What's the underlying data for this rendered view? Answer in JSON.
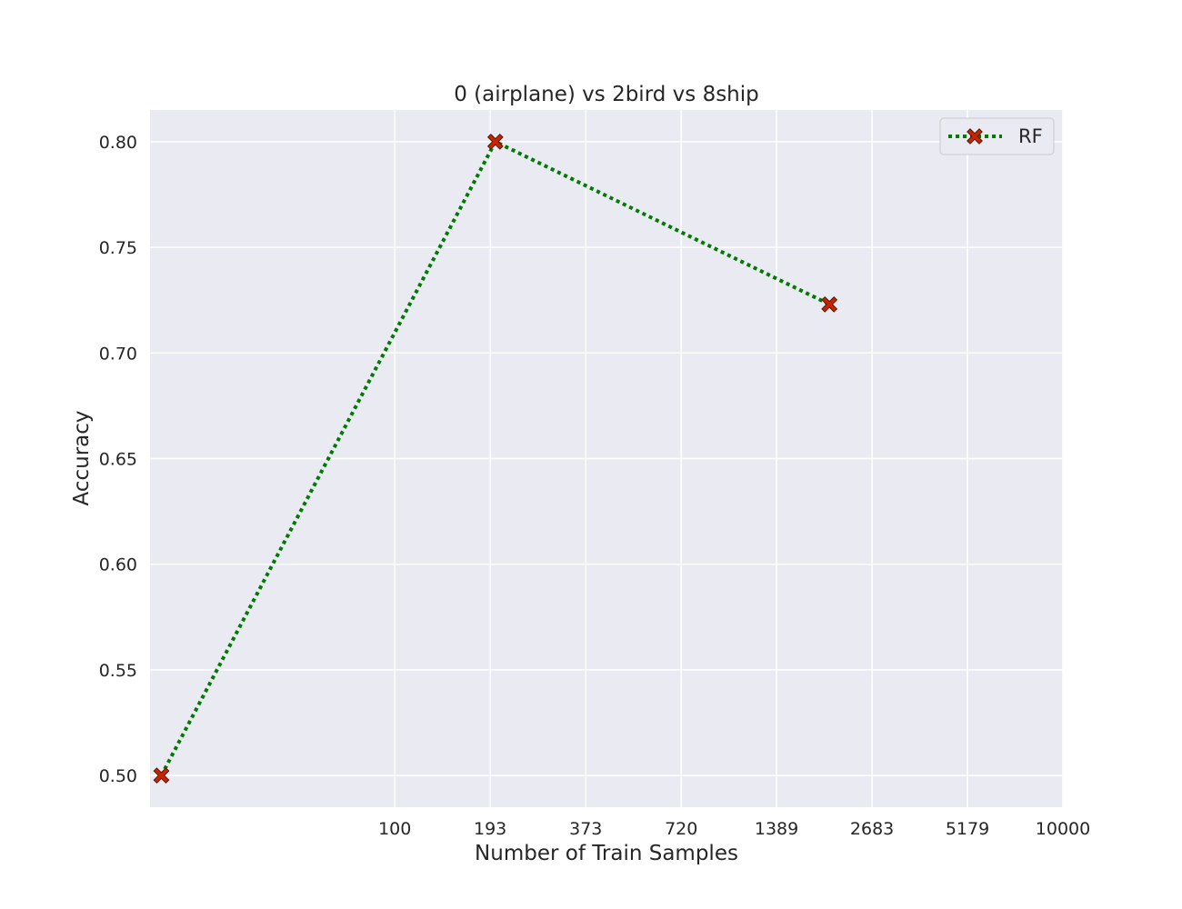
{
  "chart_data": {
    "type": "line",
    "title": "0 (airplane)  vs 2bird vs 8ship",
    "xlabel": "Number of Train Samples",
    "ylabel": "Accuracy",
    "x_scale": "log",
    "x_ticks": [
      100,
      193,
      373,
      720,
      1389,
      2683,
      5179,
      10000
    ],
    "x_tick_labels": [
      "100",
      "193",
      "373",
      "720",
      "1389",
      "2683",
      "5179",
      "10000"
    ],
    "xlim": [
      18.5,
      10000
    ],
    "y_ticks": [
      0.5,
      0.55,
      0.6,
      0.65,
      0.7,
      0.75,
      0.8
    ],
    "y_tick_labels": [
      "0.50",
      "0.55",
      "0.60",
      "0.65",
      "0.70",
      "0.75",
      "0.80"
    ],
    "ylim": [
      0.485,
      0.815
    ],
    "grid": true,
    "legend_position": "top-right",
    "series": [
      {
        "name": "RF",
        "x": [
          20,
          200,
          2000
        ],
        "y": [
          0.5,
          0.8,
          0.723
        ],
        "line_color": "#007a00",
        "line_style": "dotted",
        "marker": "x",
        "marker_color": "#cc2200"
      }
    ]
  },
  "colors": {
    "plot_background": "#eaeaf2",
    "grid": "#ffffff",
    "text": "#262626"
  }
}
